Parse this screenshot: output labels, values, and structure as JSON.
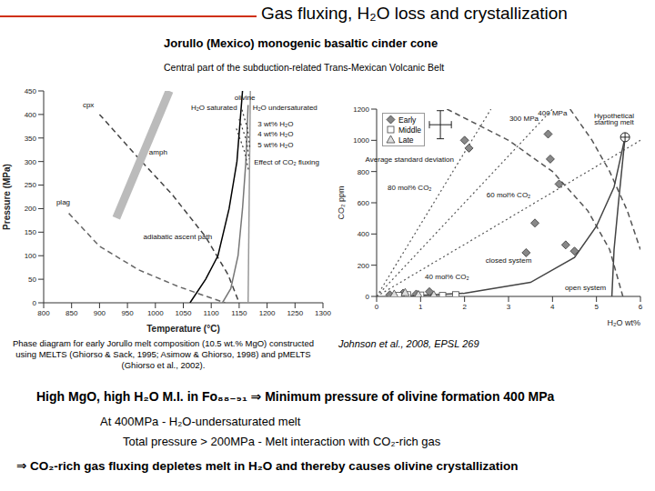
{
  "header": {
    "title": "Gas fluxing, H₂O loss and crystallization",
    "subtitle": "Jorullo (Mexico) monogenic basaltic cinder cone",
    "subtitle2": "Central part of the subduction-related Trans-Mexican Volcanic Belt"
  },
  "chart_data": [
    {
      "type": "line",
      "x_label": "Temperature (°C)",
      "y_label": "Pressure (MPa)",
      "xlim": [
        800,
        1300
      ],
      "xticks": [
        800,
        850,
        900,
        950,
        1000,
        1050,
        1100,
        1150,
        1200,
        1250,
        1300
      ],
      "ylim": [
        0,
        450
      ],
      "yticks": [
        0,
        50,
        100,
        150,
        200,
        250,
        300,
        350,
        400,
        450
      ],
      "series": [
        {
          "color": "#444444",
          "line_style": "dashed",
          "points": [
            [
              900,
              400
            ],
            [
              960,
              320
            ],
            [
              1030,
              230
            ],
            [
              1090,
              140
            ],
            [
              1130,
              60
            ],
            [
              1150,
              0
            ]
          ]
        },
        {
          "color": "#666666",
          "line_style": "dashed",
          "points": [
            [
              845,
              190
            ],
            [
              900,
              120
            ],
            [
              970,
              70
            ],
            [
              1040,
              35
            ],
            [
              1100,
              10
            ],
            [
              1125,
              0
            ]
          ]
        },
        {
          "color": "#bbbbbb",
          "line_style": "thick",
          "points": [
            [
              930,
              180
            ],
            [
              1025,
              450
            ]
          ]
        },
        {
          "color": "#000000",
          "line_style": "solid",
          "points": [
            [
              1062,
              0
            ],
            [
              1090,
              50
            ],
            [
              1112,
              100
            ],
            [
              1132,
              200
            ],
            [
              1146,
              300
            ],
            [
              1156,
              450
            ]
          ]
        },
        {
          "color": "#999999",
          "line_style": "solid",
          "points": [
            [
              1166,
              0
            ],
            [
              1168,
              225
            ],
            [
              1170,
              450
            ]
          ]
        },
        {
          "color": "#777777",
          "line_style": "solid",
          "points": [
            [
              1166,
              420
            ],
            [
              1162,
              300
            ],
            [
              1156,
              200
            ],
            [
              1148,
              100
            ],
            [
              1135,
              30
            ],
            [
              1120,
              0
            ]
          ]
        },
        {
          "color": "#333333",
          "line_style": "dotted",
          "points": [
            [
              1155,
              410
            ],
            [
              1165,
              370
            ],
            [
              1169,
              330
            ]
          ]
        },
        {
          "color": "#333333",
          "line_style": "dotted",
          "points": [
            [
              1150,
              390
            ],
            [
              1163,
              345
            ],
            [
              1168,
              305
            ]
          ]
        },
        {
          "color": "#333333",
          "line_style": "dotted",
          "points": [
            [
              1145,
              370
            ],
            [
              1160,
              320
            ],
            [
              1167,
              280
            ]
          ]
        }
      ],
      "annotations": [
        {
          "text": "cpx",
          "x": 880,
          "y": 420
        },
        {
          "text": "plag",
          "x": 835,
          "y": 215
        },
        {
          "text": "amph",
          "x": 1005,
          "y": 320
        },
        {
          "text": "olivine",
          "x": 1160,
          "y": 437
        },
        {
          "text": "H₂O saturated",
          "x": 1105,
          "y": 415
        },
        {
          "text": "H₂O undersaturated",
          "x": 1232,
          "y": 415
        },
        {
          "text": "3 wt% H₂O",
          "x": 1215,
          "y": 380
        },
        {
          "text": "4 wt% H₂O",
          "x": 1215,
          "y": 358
        },
        {
          "text": "5 wt% H₂O",
          "x": 1215,
          "y": 336
        },
        {
          "text": "Effect of CO₂ fluxing",
          "x": 1235,
          "y": 300
        },
        {
          "text": "adiabatic ascent path",
          "x": 1040,
          "y": 140
        }
      ]
    },
    {
      "type": "scatter",
      "x_label": "H₂O wt%",
      "y_label": "CO₂ ppm",
      "xlim": [
        0,
        6
      ],
      "xticks": [
        0,
        1,
        2,
        3,
        4,
        5,
        6
      ],
      "ylim": [
        0,
        1200
      ],
      "yticks": [
        0,
        200,
        400,
        600,
        800,
        1000,
        1200
      ],
      "series": [
        {
          "name": "Early",
          "color": "#888888",
          "marker": "diamond",
          "x": [
            2.0,
            2.1,
            3.9,
            3.95,
            4.15,
            3.6,
            3.4,
            4.3,
            4.5,
            0.3,
            0.6,
            0.9,
            1.2
          ],
          "y": [
            1000,
            950,
            1040,
            880,
            720,
            470,
            280,
            330,
            290,
            10,
            20,
            15,
            30
          ]
        },
        {
          "name": "Middle",
          "color": "#ffffff",
          "marker": "square",
          "x": [
            0.5,
            0.7,
            1.0,
            1.5,
            1.8
          ],
          "y": [
            5,
            10,
            8,
            5,
            10
          ]
        },
        {
          "name": "Late",
          "color": "#dddddd",
          "marker": "triangle",
          "x": [
            0.4,
            0.65,
            0.95,
            1.3
          ],
          "y": [
            15,
            25,
            12,
            10
          ]
        }
      ],
      "lines": [
        {
          "color": "#555555",
          "line_style": "dashed",
          "points": [
            [
              1.6,
              1200
            ],
            [
              3,
              1000
            ],
            [
              4,
              800
            ],
            [
              4.8,
              550
            ],
            [
              5.3,
              300
            ],
            [
              5.6,
              0
            ]
          ]
        },
        {
          "color": "#555555",
          "line_style": "dashed",
          "points": [
            [
              4.4,
              1200
            ],
            [
              4.9,
              1000
            ],
            [
              5.3,
              800
            ],
            [
              5.7,
              550
            ],
            [
              6,
              300
            ]
          ]
        },
        {
          "color": "#555555",
          "line_style": "dotted",
          "points": [
            [
              0,
              0
            ],
            [
              2.6,
              1200
            ]
          ]
        },
        {
          "color": "#555555",
          "line_style": "dotted",
          "points": [
            [
              0,
              0
            ],
            [
              4,
              1200
            ]
          ]
        },
        {
          "color": "#555555",
          "line_style": "dotted",
          "points": [
            [
              0,
              0
            ],
            [
              6,
              1000
            ]
          ]
        },
        {
          "color": "#444444",
          "line_style": "solid",
          "points": [
            [
              5.65,
              1020
            ],
            [
              5.4,
              700
            ],
            [
              5.0,
              450
            ],
            [
              4.5,
              250
            ],
            [
              3.5,
              90
            ],
            [
              2,
              20
            ],
            [
              0.5,
              0
            ]
          ]
        },
        {
          "color": "#444444",
          "line_style": "solid",
          "points": [
            [
              5.65,
              1020
            ],
            [
              5.5,
              600
            ],
            [
              5.4,
              300
            ],
            [
              5.35,
              0
            ]
          ]
        }
      ],
      "points": [
        {
          "marker": "circle_plus",
          "color": "#ffffff",
          "x": 5.65,
          "y": 1020
        }
      ],
      "error_bar": {
        "x": 1.45,
        "y": 1100,
        "x_err": 0.25,
        "y_err": 90
      },
      "annotations": [
        {
          "text": "Average standard deviation",
          "x": 0.75,
          "y": 880
        },
        {
          "text": "300 MPa",
          "x": 3.35,
          "y": 1140
        },
        {
          "text": "400 MPa",
          "x": 4.0,
          "y": 1175
        },
        {
          "text": "Hypothetical",
          "x": 5.4,
          "y": 1160
        },
        {
          "text": "starting melt",
          "x": 5.4,
          "y": 1120
        },
        {
          "text": "80 mol% CO₂",
          "x": 0.75,
          "y": 700
        },
        {
          "text": "60 mol% CO₂",
          "x": 3.0,
          "y": 650
        },
        {
          "text": "40 mol% CO₂",
          "x": 1.6,
          "y": 130
        },
        {
          "text": "closed system",
          "x": 3.0,
          "y": 230
        },
        {
          "text": "open system",
          "x": 4.75,
          "y": 60
        }
      ]
    }
  ],
  "captions": {
    "left": "Phase diagram for early Jorullo melt composition (10.5 wt.% MgO) constructed using MELTS (Ghiorso & Sack, 1995; Asimow & Ghiorso, 1998) and pMELTS (Ghiorso et al., 2002).",
    "right": "Johnson et al., 2008, EPSL 269"
  },
  "conclusions": [
    "High MgO, high H₂O M.I. in Fo₈₈₋₉₁ ⇒ Minimum pressure of olivine formation 400 MPa",
    "At 400MPa - H₂O-undersaturated melt",
    "Total pressure > 200MPa - Melt interaction with CO₂-rich gas",
    "⇒ CO₂-rich gas fluxing depletes melt in H₂O and thereby causes olivine crystallization"
  ]
}
